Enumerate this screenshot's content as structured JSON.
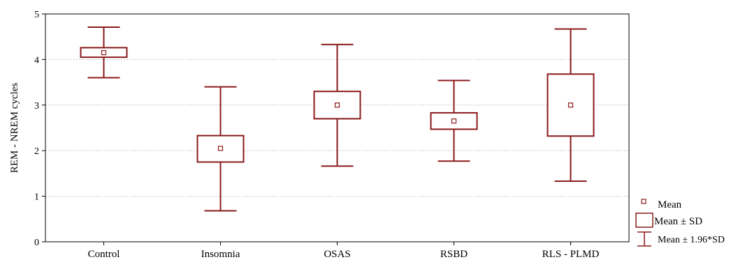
{
  "chart_data": {
    "type": "box",
    "categories": [
      "Control",
      "Insomnia",
      "OSAS",
      "RSBD",
      "RLS - PLMD"
    ],
    "series": [
      {
        "mean": [
          4.15,
          2.05,
          3.0,
          2.65,
          3.0
        ],
        "sd_low": [
          4.05,
          1.75,
          2.7,
          2.47,
          2.32
        ],
        "sd_high": [
          4.26,
          2.33,
          3.3,
          2.83,
          3.68
        ],
        "ci196_low": [
          3.6,
          0.68,
          1.66,
          1.77,
          1.33
        ],
        "ci196_high": [
          4.71,
          3.4,
          4.33,
          3.54,
          4.67
        ]
      }
    ],
    "ylabel": "REM - NREM cycles",
    "ylim": [
      0,
      5
    ],
    "yticks": [
      "0",
      "1",
      "2",
      "3",
      "4",
      "5"
    ],
    "grid": true,
    "legend": {
      "placement": "right",
      "entries": [
        "Mean",
        "Mean ± SD",
        "Mean ± 1.96*SD"
      ]
    },
    "colors": {
      "box": "#8b1a1a",
      "grid": "#c8c8c8",
      "axis": "#000000"
    }
  }
}
